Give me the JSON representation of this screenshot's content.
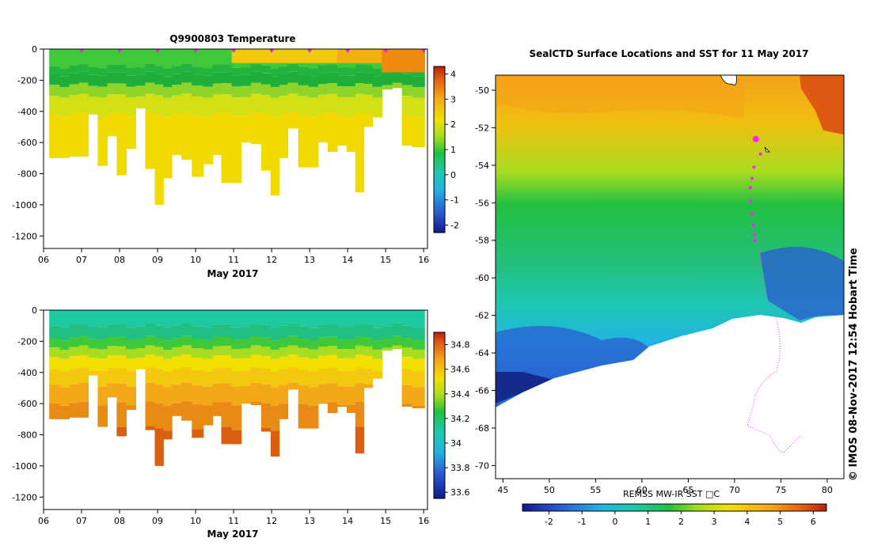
{
  "chart_data": [
    {
      "type": "heatmap",
      "title": "Q9900803  Temperature",
      "xlabel": "May 2017",
      "ylabel": "",
      "x_ticks": [
        "06",
        "07",
        "08",
        "09",
        "10",
        "11",
        "12",
        "13",
        "14",
        "15",
        "16"
      ],
      "y_ticks": [
        0,
        -200,
        -400,
        -600,
        -800,
        -1000,
        -1200
      ],
      "xlim": [
        6,
        16.1
      ],
      "ylim": [
        -1280,
        0
      ],
      "colorbar": {
        "ticks": [
          4,
          3,
          2,
          1,
          0,
          -1,
          -2
        ],
        "range": [
          -2.3,
          4.3
        ]
      },
      "profile_times": [
        6.3,
        6.55,
        6.8,
        7.05,
        7.3,
        7.55,
        7.8,
        8.05,
        8.3,
        8.55,
        8.8,
        9.05,
        9.25,
        9.5,
        9.75,
        10.05,
        10.35,
        10.55,
        10.8,
        11.1,
        11.3,
        11.6,
        11.85,
        12.1,
        12.3,
        12.55,
        12.85,
        13.1,
        13.35,
        13.6,
        13.85,
        14.1,
        14.3,
        14.55,
        14.75,
        15.05,
        15.3,
        15.55,
        15.85
      ],
      "profile_max_depth": [
        700,
        700,
        690,
        690,
        420,
        750,
        560,
        810,
        640,
        380,
        770,
        1000,
        830,
        680,
        710,
        820,
        740,
        680,
        860,
        860,
        600,
        610,
        780,
        940,
        700,
        510,
        760,
        760,
        600,
        660,
        620,
        660,
        920,
        500,
        440,
        260,
        250,
        620,
        630
      ],
      "surface_markers_x": [
        7,
        8,
        9,
        10,
        11,
        12,
        13,
        14,
        15,
        16
      ]
    },
    {
      "type": "heatmap",
      "title": "",
      "xlabel": "May 2017",
      "ylabel": "",
      "x_ticks": [
        "06",
        "07",
        "08",
        "09",
        "10",
        "11",
        "12",
        "13",
        "14",
        "15",
        "16"
      ],
      "y_ticks": [
        0,
        -200,
        -400,
        -600,
        -800,
        -1000,
        -1200
      ],
      "xlim": [
        6,
        16.1
      ],
      "ylim": [
        -1280,
        0
      ],
      "colorbar": {
        "ticks": [
          34.8,
          34.6,
          34.4,
          34.2,
          34,
          33.8,
          33.6
        ],
        "range": [
          33.55,
          34.9
        ]
      }
    },
    {
      "type": "heatmap",
      "title": "SealCTD Surface Locations and SST for 11 May 2017",
      "x_ticks": [
        45,
        50,
        55,
        60,
        65,
        70,
        75,
        80
      ],
      "y_ticks": [
        -50,
        -52,
        -54,
        -56,
        -58,
        -60,
        -62,
        -64,
        -66,
        -68,
        -70
      ],
      "xlim": [
        44.2,
        81.8
      ],
      "ylim": [
        -70.7,
        -49.2
      ],
      "colorbar_label": "REMSS MW-IR SST □C",
      "colorbar": {
        "ticks": [
          -2,
          -1,
          0,
          1,
          2,
          3,
          4,
          5,
          6
        ],
        "range": [
          -2.8,
          6.4
        ]
      },
      "surface_locations": [
        [
          72.3,
          -52.6
        ],
        [
          72.8,
          -53.4
        ],
        [
          72.1,
          -54.1
        ],
        [
          71.9,
          -54.7
        ],
        [
          71.7,
          -55.2
        ],
        [
          71.7,
          -55.9
        ],
        [
          71.9,
          -56.6
        ],
        [
          72,
          -57.2
        ],
        [
          72.1,
          -57.7
        ],
        [
          72.2,
          -58
        ]
      ]
    }
  ],
  "side_label": "© IMOS 08-Nov-2017 12:54 Hobart Time"
}
